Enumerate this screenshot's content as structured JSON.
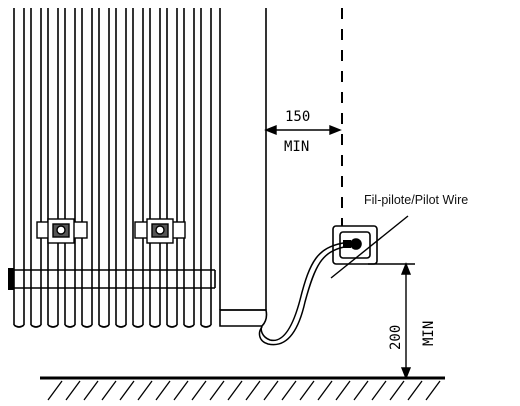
{
  "dimensions": {
    "side_clearance": {
      "value": "150",
      "unit": "MIN"
    },
    "floor_clearance": {
      "value": "200",
      "unit": "MIN"
    }
  },
  "labels": {
    "pilot_wire": "Fil-pilote/Pilot Wire"
  }
}
